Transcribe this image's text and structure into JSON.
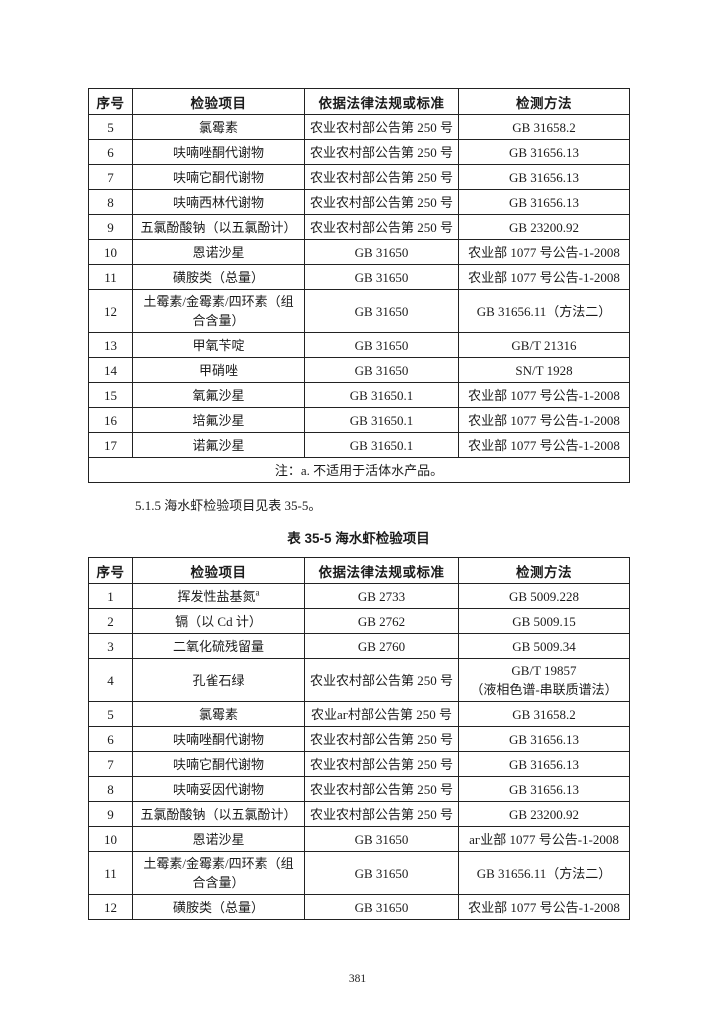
{
  "page": {
    "number": "381"
  },
  "columns": {
    "headers": [
      "序号",
      "检验项目",
      "依据法律法规或标准",
      "检测方法"
    ]
  },
  "table1": {
    "rows": [
      [
        "5",
        "氯霉素",
        "农业农村部公告第 250 号",
        "GB 31658.2"
      ],
      [
        "6",
        "呋喃唑酮代谢物",
        "农业农村部公告第 250 号",
        "GB 31656.13"
      ],
      [
        "7",
        "呋喃它酮代谢物",
        "农业农村部公告第 250 号",
        "GB 31656.13"
      ],
      [
        "8",
        "呋喃西林代谢物",
        "农业农村部公告第 250 号",
        "GB 31656.13"
      ],
      [
        "9",
        "五氯酚酸钠（以五氯酚计）",
        "农业农村部公告第 250 号",
        "GB 23200.92"
      ],
      [
        "10",
        "恩诺沙星",
        "GB 31650",
        "农业部 1077 号公告-1-2008"
      ],
      [
        "11",
        "磺胺类（总量）",
        "GB 31650",
        "农业部 1077 号公告-1-2008"
      ],
      [
        "12",
        "土霉素/金霉素/四环素（组合含量）",
        "GB 31650",
        "GB 31656.11（方法二）"
      ],
      [
        "13",
        "甲氧苄啶",
        "GB 31650",
        "GB/T 21316"
      ],
      [
        "14",
        "甲硝唑",
        "GB 31650",
        "SN/T 1928"
      ],
      [
        "15",
        "氧氟沙星",
        "GB 31650.1",
        "农业部 1077 号公告-1-2008"
      ],
      [
        "16",
        "培氟沙星",
        "GB 31650.1",
        "农业部 1077 号公告-1-2008"
      ],
      [
        "17",
        "诺氟沙星",
        "GB 31650.1",
        "农业部 1077 号公告-1-2008"
      ]
    ],
    "note": "注：a. 不适用于活体水产品。"
  },
  "section": {
    "text": "5.1.5 海水虾检验项目见表 35-5。"
  },
  "table2": {
    "title": "表 35-5 海水虾检验项目",
    "rows": [
      [
        "1",
        "挥发性盐基氮^a",
        "GB 2733",
        "GB 5009.228"
      ],
      [
        "2",
        "镉（以 Cd 计）",
        "GB 2762",
        "GB 5009.15"
      ],
      [
        "3",
        "二氧化硫残留量",
        "GB 2760",
        "GB 5009.34"
      ],
      [
        "4",
        "孔雀石绿",
        "农业农村部公告第 250 号",
        "GB/T 19857\n（液相色谱-串联质谱法）"
      ],
      [
        "5",
        "氯霉素",
        "农业аг村部公告第 250 号",
        "GB 31658.2"
      ],
      [
        "6",
        "呋喃唑酮代谢物",
        "农业农村部公告第 250 号",
        "GB 31656.13"
      ],
      [
        "7",
        "呋喃它酮代谢物",
        "农业农村部公告第 250 号",
        "GB 31656.13"
      ],
      [
        "8",
        "呋喃妥因代谢物",
        "农业农村部公告第 250 号",
        "GB 31656.13"
      ],
      [
        "9",
        "五氯酚酸钠（以五氯酚计）",
        "农业农村部公告第 250 号",
        "GB 23200.92"
      ],
      [
        "10",
        "恩诺沙星",
        "GB 31650",
        "аг业部 1077 号公告-1-2008"
      ],
      [
        "11",
        "土霉素/金霉素/四环素（组合含量）",
        "GB 31650",
        "GB 31656.11（方法二）"
      ],
      [
        "12",
        "磺胺类（总量）",
        "GB 31650",
        "农业部 1077 号公告-1-2008"
      ]
    ]
  }
}
